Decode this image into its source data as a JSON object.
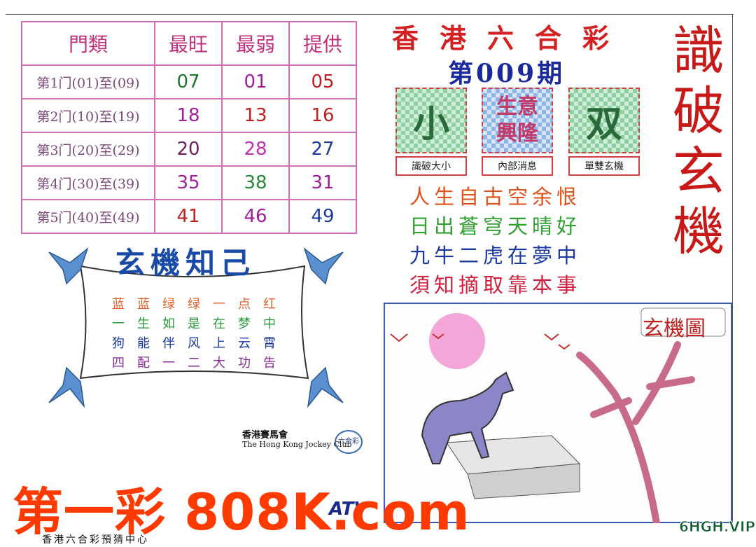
{
  "header": {
    "title": "香港六合彩",
    "issue": "第009期",
    "side_title": "識破玄機"
  },
  "table": {
    "columns": [
      "門類",
      "最旺",
      "最弱",
      "提供"
    ],
    "rows": [
      [
        "第1门(01)至(09)",
        "07",
        "01",
        "05"
      ],
      [
        "第2门(10)至(19)",
        "18",
        "13",
        "16"
      ],
      [
        "第3门(20)至(29)",
        "20",
        "28",
        "27"
      ],
      [
        "第4门(30)至(39)",
        "35",
        "38",
        "31"
      ],
      [
        "第5门(40)至(49)",
        "41",
        "46",
        "49"
      ]
    ]
  },
  "badges": [
    {
      "icon": "小",
      "label": "識破大小"
    },
    {
      "icon": "生意興隆",
      "label": "內部消息"
    },
    {
      "icon": "双",
      "label": "單雙玄機"
    }
  ],
  "poem": [
    "人生自古空余恨",
    "日出蒼穹天晴好",
    "九牛二虎在夢中",
    "須知摘取靠本事"
  ],
  "riddle": {
    "title": "玄機知己",
    "lines": [
      "蓝蓝绿绿一点红",
      "一生如是在梦中",
      "狗能伴风上云霄",
      "四配一二大功告"
    ]
  },
  "sponsor": {
    "name": "香港賽馬會",
    "name_en": "The Hong Kong Jockey Club",
    "logo": "六合彩",
    "tv": "ATV"
  },
  "picture": {
    "title": "玄機圖"
  },
  "watermark": {
    "main": "第一彩 808K.com",
    "corner": "6HGH.VIP"
  },
  "footer": "香港六合彩預猜中心"
}
